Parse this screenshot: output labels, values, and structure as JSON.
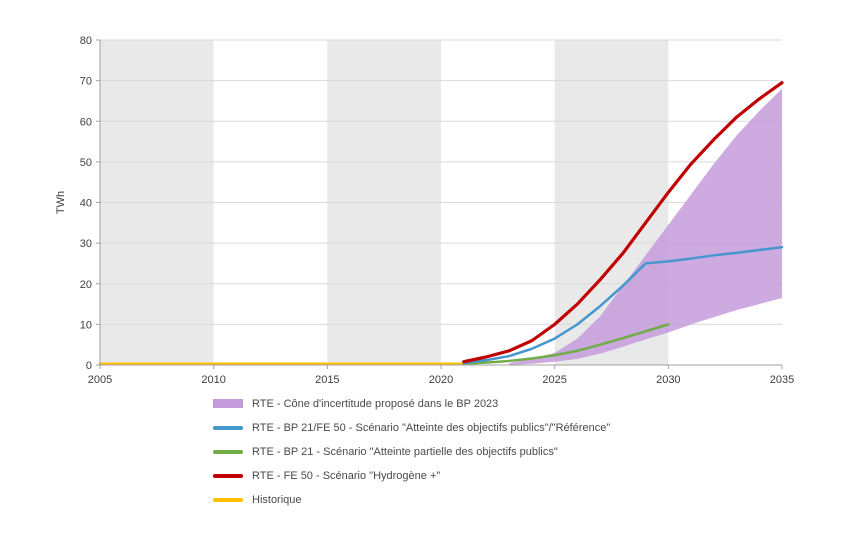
{
  "chart_data": {
    "type": "line",
    "title": "",
    "xlabel": "",
    "ylabel": "TWh",
    "xlim": [
      2005,
      2035
    ],
    "ylim": [
      0,
      80
    ],
    "xticks": [
      2005,
      2010,
      2015,
      2020,
      2025,
      2030,
      2035
    ],
    "yticks": [
      0,
      10,
      20,
      30,
      40,
      50,
      60,
      70,
      80
    ],
    "grid": true,
    "legend_position": "bottom-left",
    "band_colors": [
      "#e9e9e9",
      "#ffffff"
    ],
    "uncertainty_area": {
      "label": "RTE - Cône d'incertitude proposé dans le BP 2023",
      "color": "#c49bdb",
      "opacity": 0.85,
      "x": [
        2023,
        2024,
        2025,
        2026,
        2027,
        2028,
        2029,
        2030,
        2031,
        2032,
        2033,
        2034,
        2035
      ],
      "upper": [
        0.5,
        1.5,
        3,
        6.5,
        12,
        19.5,
        27,
        34.5,
        42,
        49.5,
        56.5,
        62.5,
        68
      ],
      "lower": [
        0,
        0.3,
        0.8,
        1.5,
        2.8,
        4.5,
        6.3,
        8,
        10,
        11.8,
        13.5,
        15,
        16.5
      ]
    },
    "series": [
      {
        "name": "Historique",
        "color": "#ffc000",
        "width": 2.5,
        "x": [
          2005,
          2021.5
        ],
        "y": [
          0.3,
          0.3
        ]
      },
      {
        "name": "RTE - BP 21 - Scénario \"Atteinte partielle des objectifs publics\"",
        "color": "#70ad47",
        "width": 2.5,
        "x": [
          2021,
          2022,
          2023,
          2024,
          2025,
          2026,
          2027,
          2028,
          2029,
          2030
        ],
        "y": [
          0.3,
          0.6,
          1.0,
          1.6,
          2.4,
          3.5,
          5.0,
          6.6,
          8.3,
          10.0
        ]
      },
      {
        "name": "RTE - BP 21/FE 50 - Scénario \"Atteinte des objectifs publics\"/\"Référence\"",
        "color": "#4697ce",
        "width": 2.5,
        "x": [
          2021,
          2022,
          2023,
          2024,
          2025,
          2026,
          2027,
          2028,
          2029,
          2030,
          2031,
          2032,
          2033,
          2034,
          2035
        ],
        "y": [
          0.5,
          1.2,
          2.2,
          4.0,
          6.5,
          10.0,
          14.5,
          19.5,
          25.0,
          25.5,
          26.2,
          27.0,
          27.6,
          28.3,
          29.0
        ]
      },
      {
        "name": "RTE - FE 50 - Scénario \"Hydrogène +\"",
        "color": "#c00000",
        "width": 3.2,
        "x": [
          2021,
          2022,
          2023,
          2024,
          2025,
          2026,
          2027,
          2028,
          2029,
          2030,
          2031,
          2032,
          2033,
          2034,
          2035
        ],
        "y": [
          0.8,
          2.0,
          3.5,
          6.0,
          10.0,
          15.0,
          21.0,
          27.5,
          35.0,
          42.5,
          49.5,
          55.5,
          61.0,
          65.5,
          69.5
        ]
      }
    ],
    "legend": [
      {
        "label": "RTE - Cône d'incertitude proposé dans le BP 2023",
        "color": "#c49bdb",
        "kind": "area"
      },
      {
        "label": "RTE - BP 21/FE 50 - Scénario \"Atteinte des objectifs publics\"/\"Référence\"",
        "color": "#4697ce",
        "kind": "line"
      },
      {
        "label": "RTE - BP 21 - Scénario \"Atteinte partielle des objectifs publics\"",
        "color": "#70ad47",
        "kind": "line"
      },
      {
        "label": "RTE - FE 50 - Scénario \"Hydrogène +\"",
        "color": "#c00000",
        "kind": "line"
      },
      {
        "label": "Historique",
        "color": "#ffc000",
        "kind": "line"
      }
    ]
  }
}
